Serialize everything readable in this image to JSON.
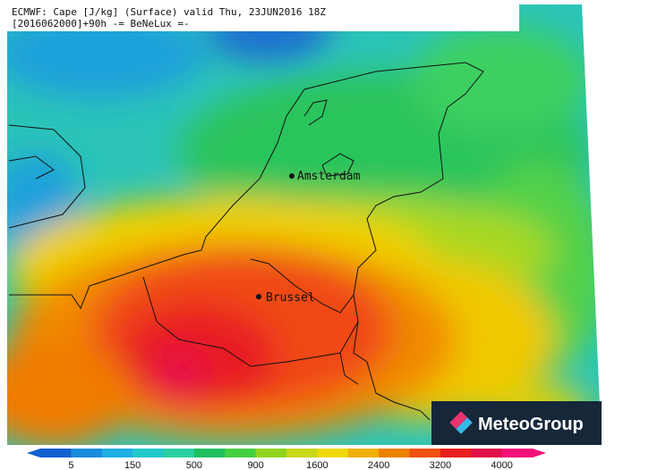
{
  "header": {
    "line1": "ECMWF: Cape [J/kg] (Surface) valid Thu, 23JUN2016 18Z",
    "line2": "[2016062000]+90h -= BeNeLux =-"
  },
  "cities": [
    {
      "name": "Amsterdam"
    },
    {
      "name": "Brussel"
    }
  ],
  "legend": {
    "ticks": [
      5,
      150,
      500,
      900,
      1600,
      2400,
      3200,
      4000
    ]
  },
  "logo": {
    "text": "MeteoGroup"
  }
}
